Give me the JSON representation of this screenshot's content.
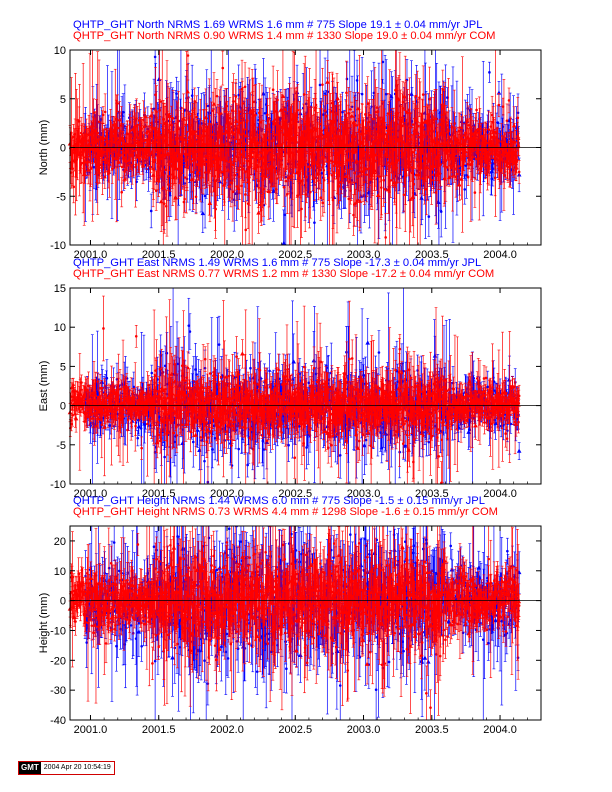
{
  "colors": {
    "jpl": "#0000ff",
    "com": "#ff0000",
    "axis": "#000000"
  },
  "stamp": {
    "logo": "GMT",
    "timestamp": "2004 Apr 20 10:54:19"
  },
  "chart_data": [
    {
      "type": "scatter",
      "component": "north",
      "ylabel": "North (mm)",
      "xlim": [
        2000.85,
        2004.3
      ],
      "ylim": [
        -10,
        10
      ],
      "xticks": [
        "2001.0",
        "2001.5",
        "2002.0",
        "2002.5",
        "2003.0",
        "2003.5",
        "2004.0"
      ],
      "yticks": [
        -10,
        -5,
        0,
        5,
        10
      ],
      "series": [
        {
          "legend": "QHTP_GHT North NRMS 1.69 WRMS  1.6 mm # 775 Slope   19.1 ±  0.04 mm/yr JPL",
          "color_key": "jpl",
          "count": 775,
          "start": 2000.96,
          "end": 2004.14,
          "nrms": 1.69,
          "wrms_mm": 1.6,
          "slope_mm_yr": 19.1,
          "slope_sigma": 0.04,
          "solution": "JPL"
        },
        {
          "legend": "QHTP_GHT North NRMS 0.90 WRMS  1.4 mm # 1330 Slope   19.0 ±  0.04 mm/yr COM",
          "color_key": "com",
          "count": 1330,
          "start": 2000.85,
          "end": 2004.14,
          "nrms": 0.9,
          "wrms_mm": 1.4,
          "slope_mm_yr": 19.0,
          "slope_sigma": 0.04,
          "solution": "COM"
        }
      ]
    },
    {
      "type": "scatter",
      "component": "east",
      "ylabel": "East (mm)",
      "xlim": [
        2000.85,
        2004.3
      ],
      "ylim": [
        -10,
        15
      ],
      "xticks": [
        "2001.0",
        "2001.5",
        "2002.0",
        "2002.5",
        "2003.0",
        "2003.5",
        "2004.0"
      ],
      "yticks": [
        -10,
        -5,
        0,
        5,
        10,
        15
      ],
      "series": [
        {
          "legend": "QHTP_GHT East NRMS 1.49 WRMS  1.6 mm # 775 Slope  -17.3 ±  0.04 mm/yr JPL",
          "color_key": "jpl",
          "count": 775,
          "start": 2000.96,
          "end": 2004.14,
          "nrms": 1.49,
          "wrms_mm": 1.6,
          "slope_mm_yr": -17.3,
          "slope_sigma": 0.04,
          "solution": "JPL"
        },
        {
          "legend": "QHTP_GHT East NRMS 0.77 WRMS  1.2 mm # 1330 Slope  -17.2 ±  0.04 mm/yr COM",
          "color_key": "com",
          "count": 1330,
          "start": 2000.85,
          "end": 2004.14,
          "nrms": 0.77,
          "wrms_mm": 1.2,
          "slope_mm_yr": -17.2,
          "slope_sigma": 0.04,
          "solution": "COM"
        }
      ]
    },
    {
      "type": "scatter",
      "component": "height",
      "ylabel": "Height (mm)",
      "xlim": [
        2000.85,
        2004.3
      ],
      "ylim": [
        -40,
        25
      ],
      "xticks": [
        "2001.0",
        "2001.5",
        "2002.0",
        "2002.5",
        "2003.0",
        "2003.5",
        "2004.0"
      ],
      "yticks": [
        -40,
        -30,
        -20,
        -10,
        0,
        10,
        20
      ],
      "series": [
        {
          "legend": "QHTP_GHT Height NRMS 1.44 WRMS  6.0 mm # 775 Slope   -1.5 ±  0.15 mm/yr JPL",
          "color_key": "jpl",
          "count": 775,
          "start": 2000.96,
          "end": 2004.14,
          "nrms": 1.44,
          "wrms_mm": 6.0,
          "slope_mm_yr": -1.5,
          "slope_sigma": 0.15,
          "solution": "JPL"
        },
        {
          "legend": "QHTP_GHT Height NRMS 0.73 WRMS  4.4 mm # 1298 Slope   -1.6 ±  0.15 mm/yr COM",
          "color_key": "com",
          "count": 1298,
          "start": 2000.85,
          "end": 2004.14,
          "nrms": 0.73,
          "wrms_mm": 4.4,
          "slope_mm_yr": -1.6,
          "slope_sigma": 0.15,
          "solution": "COM"
        }
      ]
    }
  ]
}
